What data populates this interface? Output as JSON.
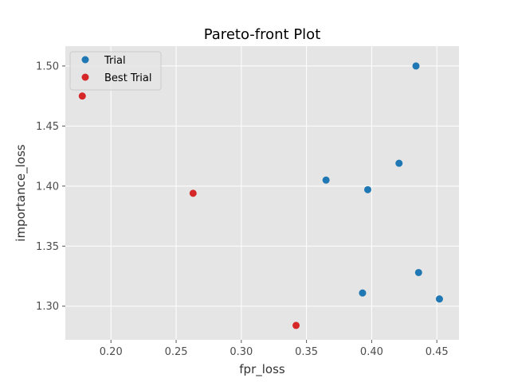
{
  "chart_data": {
    "type": "scatter",
    "title": "Pareto-front Plot",
    "xlabel": "fpr_loss",
    "ylabel": "importance_loss",
    "xlim": [
      0.165,
      0.467
    ],
    "ylim": [
      1.272,
      1.5165
    ],
    "xticks": [
      0.2,
      0.25,
      0.3,
      0.35,
      0.4,
      0.45
    ],
    "yticks": [
      1.3,
      1.35,
      1.4,
      1.45,
      1.5
    ],
    "xtick_labels": [
      "0.20",
      "0.25",
      "0.30",
      "0.35",
      "0.40",
      "0.45"
    ],
    "ytick_labels": [
      "1.30",
      "1.35",
      "1.40",
      "1.45",
      "1.50"
    ],
    "grid": true,
    "legend_position": "top-left",
    "series": [
      {
        "name": "Trial",
        "color": "#1f77b4",
        "points": [
          {
            "x": 0.434,
            "y": 1.5
          },
          {
            "x": 0.421,
            "y": 1.419
          },
          {
            "x": 0.365,
            "y": 1.405
          },
          {
            "x": 0.397,
            "y": 1.397
          },
          {
            "x": 0.436,
            "y": 1.328
          },
          {
            "x": 0.393,
            "y": 1.311
          },
          {
            "x": 0.452,
            "y": 1.306
          }
        ]
      },
      {
        "name": "Best Trial",
        "color": "#d62728",
        "points": [
          {
            "x": 0.178,
            "y": 1.475
          },
          {
            "x": 0.263,
            "y": 1.394
          },
          {
            "x": 0.342,
            "y": 1.284
          }
        ]
      }
    ]
  }
}
